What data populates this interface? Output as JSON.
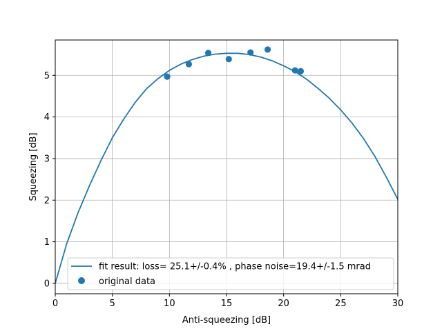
{
  "chart_data": {
    "type": "scatter",
    "title": "",
    "xlabel": "Anti-squeezing [dB]",
    "ylabel": "Squeezing [dB]",
    "xlim": [
      0,
      30
    ],
    "ylim": [
      -0.25,
      5.85
    ],
    "xticks": [
      0,
      5,
      10,
      15,
      20,
      25,
      30
    ],
    "yticks": [
      0,
      1,
      2,
      3,
      4,
      5
    ],
    "grid": true,
    "legend_position": "lower-center",
    "series": [
      {
        "name": "fit result: loss= 25.1+/-0.4% , phase noise=19.4+/-1.5 mrad",
        "kind": "line",
        "color": "#1f77b4",
        "x": [
          0,
          1,
          2,
          3,
          4,
          5,
          6,
          7,
          8,
          9,
          10,
          11,
          12,
          13,
          14,
          15,
          16,
          17,
          18,
          19,
          20,
          21,
          22,
          23,
          24,
          25,
          26,
          27,
          28,
          29,
          30
        ],
        "y": [
          0.0,
          0.95,
          1.7,
          2.35,
          2.95,
          3.5,
          3.95,
          4.35,
          4.68,
          4.92,
          5.12,
          5.27,
          5.38,
          5.46,
          5.51,
          5.53,
          5.53,
          5.5,
          5.44,
          5.35,
          5.23,
          5.09,
          4.91,
          4.69,
          4.45,
          4.17,
          3.85,
          3.48,
          3.05,
          2.55,
          2.02
        ]
      },
      {
        "name": "original data",
        "kind": "scatter",
        "color": "#1f77b4",
        "x": [
          9.8,
          11.7,
          13.4,
          15.2,
          17.1,
          18.6,
          21.0,
          21.5
        ],
        "y": [
          4.97,
          5.27,
          5.54,
          5.39,
          5.55,
          5.62,
          5.12,
          5.1
        ]
      }
    ]
  }
}
